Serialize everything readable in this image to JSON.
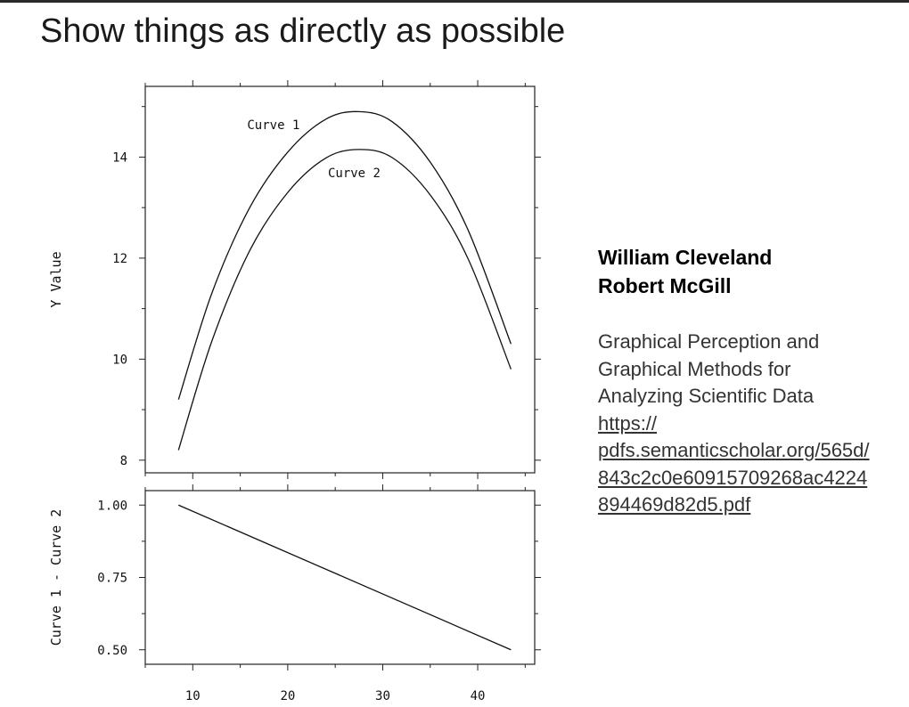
{
  "slide": {
    "title": "Show things as directly as possible",
    "authors": [
      "William Cleveland",
      "Robert McGill"
    ],
    "reference_title_lines": [
      "Graphical Perception and",
      "Graphical Methods for",
      "Analyzing Scientific Data"
    ],
    "reference_link_lines": [
      "https://",
      "pdfs.semanticscholar.org/565d/",
      "843c2c0e60915709268ac4224",
      "894469d82d5.pdf"
    ]
  },
  "chart_data": [
    {
      "type": "line",
      "ylabel": "Y Value",
      "xlim": [
        5,
        46
      ],
      "ylim": [
        7.75,
        15.4
      ],
      "x_ticks": [
        10,
        20,
        30,
        40
      ],
      "y_ticks": [
        8,
        10,
        12,
        14
      ],
      "y_tick_labels": [
        "8",
        "10",
        "12",
        "14"
      ],
      "series": [
        {
          "name": "Curve 1",
          "x": [
            8.5,
            12,
            16,
            20,
            24,
            27.5,
            31,
            35,
            39,
            43.5
          ],
          "y": [
            9.2,
            11.3,
            13.0,
            14.1,
            14.75,
            14.9,
            14.7,
            13.9,
            12.55,
            10.3
          ]
        },
        {
          "name": "Curve 2",
          "x": [
            8.5,
            12,
            16,
            20,
            24,
            27.5,
            31,
            35,
            39,
            43.5
          ],
          "y": [
            8.2,
            10.35,
            12.15,
            13.3,
            13.98,
            14.15,
            13.99,
            13.25,
            11.98,
            9.8
          ]
        }
      ]
    },
    {
      "type": "line",
      "xlabel": "",
      "ylabel": "Curve 1 - Curve 2",
      "xlim": [
        5,
        46
      ],
      "ylim": [
        0.45,
        1.05
      ],
      "x_ticks": [
        10,
        20,
        30,
        40
      ],
      "x_tick_labels": [
        "10",
        "20",
        "30",
        "40"
      ],
      "y_ticks": [
        0.5,
        0.75,
        1.0
      ],
      "y_tick_labels": [
        "0.50",
        "0.75",
        "1.00"
      ],
      "series": [
        {
          "x": [
            8.5,
            43.5
          ],
          "y": [
            1.0,
            0.5
          ]
        }
      ]
    }
  ]
}
